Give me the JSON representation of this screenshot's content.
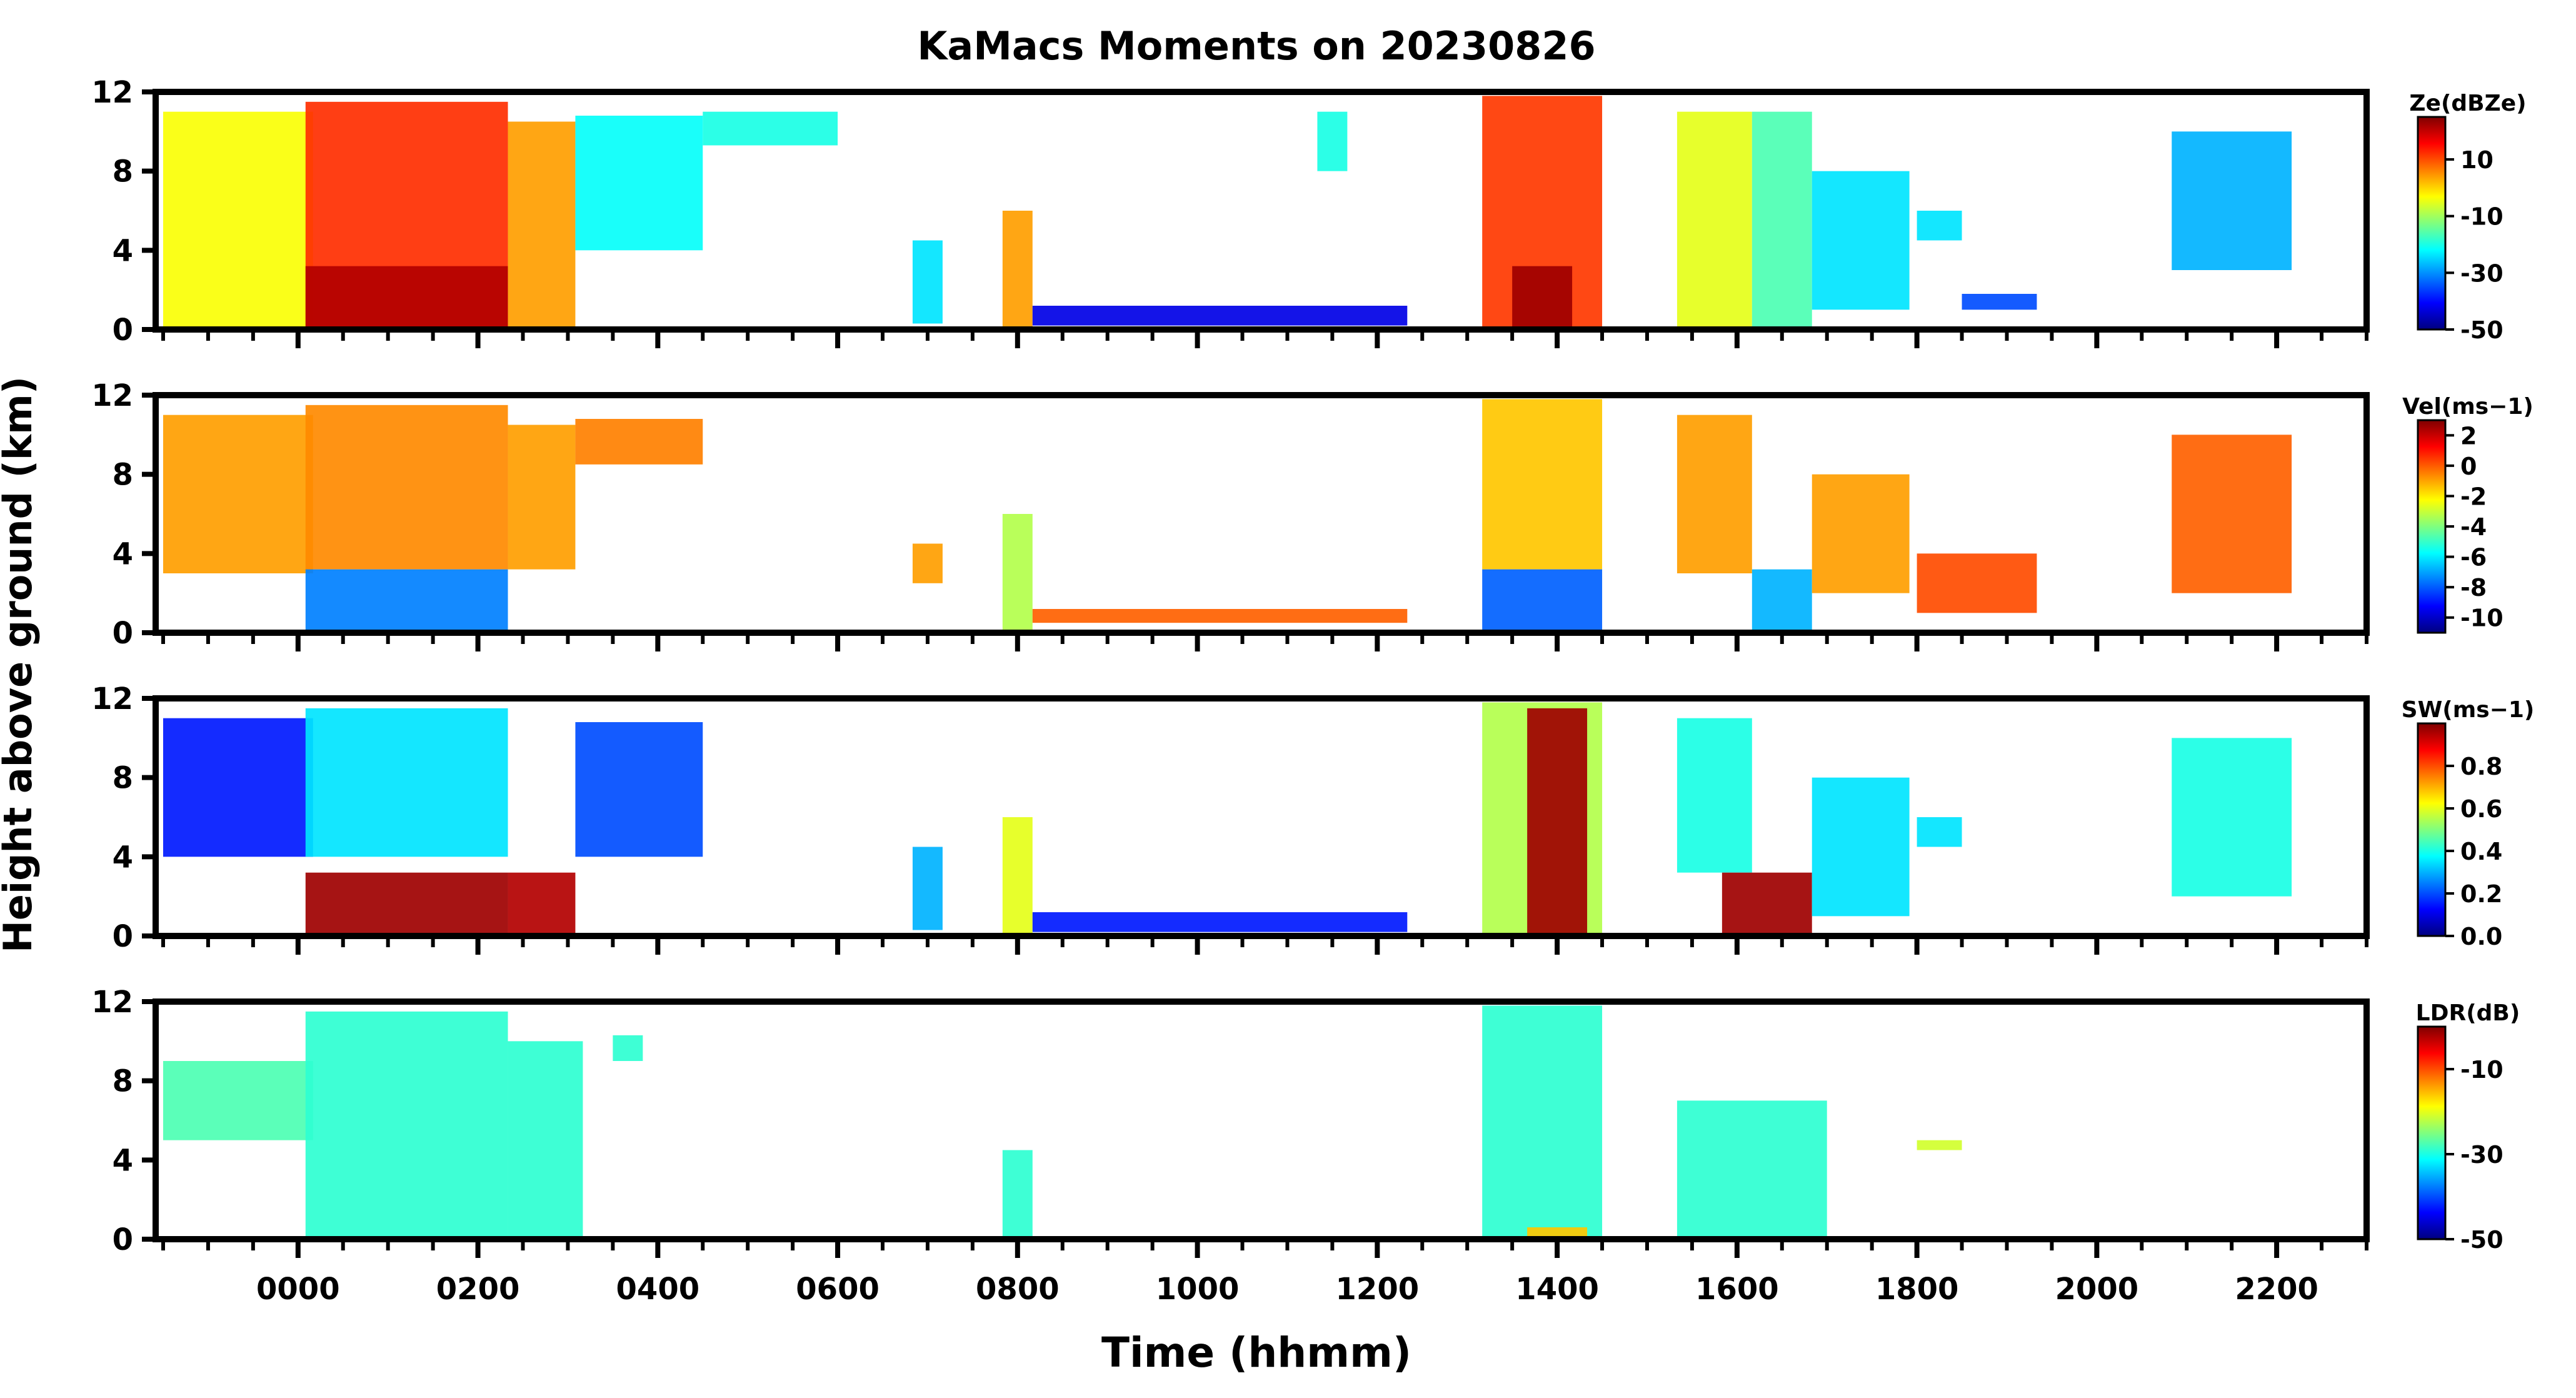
{
  "chart_data": {
    "type": "heatmap",
    "title": "KaMacs Moments on 20230826",
    "xlabel": "Time (hhmm)",
    "ylabel": "Height above ground (km)",
    "x_range_minutes": [
      -95,
      1380
    ],
    "x_ticks": [
      {
        "minutes": 0,
        "label": "0000"
      },
      {
        "minutes": 120,
        "label": "0200"
      },
      {
        "minutes": 240,
        "label": "0400"
      },
      {
        "minutes": 360,
        "label": "0600"
      },
      {
        "minutes": 480,
        "label": "0800"
      },
      {
        "minutes": 600,
        "label": "1000"
      },
      {
        "minutes": 720,
        "label": "1200"
      },
      {
        "minutes": 840,
        "label": "1400"
      },
      {
        "minutes": 960,
        "label": "1600"
      },
      {
        "minutes": 1080,
        "label": "1800"
      },
      {
        "minutes": 1200,
        "label": "2000"
      },
      {
        "minutes": 1320,
        "label": "2200"
      }
    ],
    "y_range_km": [
      0,
      12
    ],
    "y_ticks": [
      0,
      4,
      8,
      12
    ],
    "y_tick_labels": [
      "0",
      "4",
      "8",
      "12"
    ],
    "panels": [
      {
        "name": "reflectivity",
        "colorbar_label": "Ze(dBZe)",
        "range": [
          -50,
          25
        ],
        "colorbar_ticks": [
          10,
          -10,
          -30,
          -50
        ],
        "colorbar_tick_labels": [
          "10",
          "-10",
          "-30",
          "-50"
        ],
        "regions": [
          {
            "t": [
              -90,
              10
            ],
            "h": [
              0,
              11
            ],
            "v": 0.62
          },
          {
            "t": [
              5,
              140
            ],
            "h": [
              0,
              11.5
            ],
            "v": 0.83
          },
          {
            "t": [
              5,
              140
            ],
            "h": [
              0,
              3.2
            ],
            "v": 0.95
          },
          {
            "t": [
              140,
              185
            ],
            "h": [
              0,
              10.5
            ],
            "v": 0.72
          },
          {
            "t": [
              185,
              270
            ],
            "h": [
              4,
              10.8
            ],
            "v": 0.38
          },
          {
            "t": [
              270,
              360
            ],
            "h": [
              9.3,
              11
            ],
            "v": 0.4
          },
          {
            "t": [
              410,
              430
            ],
            "h": [
              0.3,
              4.5
            ],
            "v": 0.35
          },
          {
            "t": [
              470,
              490
            ],
            "h": [
              0,
              6
            ],
            "v": 0.72
          },
          {
            "t": [
              490,
              740
            ],
            "h": [
              0.2,
              1.2
            ],
            "v": 0.1
          },
          {
            "t": [
              680,
              700
            ],
            "h": [
              8,
              11
            ],
            "v": 0.4
          },
          {
            "t": [
              790,
              870
            ],
            "h": [
              0,
              11.8
            ],
            "v": 0.82
          },
          {
            "t": [
              810,
              850
            ],
            "h": [
              0,
              3.2
            ],
            "v": 0.97
          },
          {
            "t": [
              920,
              970
            ],
            "h": [
              0,
              11
            ],
            "v": 0.6
          },
          {
            "t": [
              970,
              1010
            ],
            "h": [
              0,
              11
            ],
            "v": 0.45
          },
          {
            "t": [
              1010,
              1075
            ],
            "h": [
              1,
              8
            ],
            "v": 0.35
          },
          {
            "t": [
              1080,
              1110
            ],
            "h": [
              4.5,
              6
            ],
            "v": 0.35
          },
          {
            "t": [
              1110,
              1160
            ],
            "h": [
              1,
              1.8
            ],
            "v": 0.2
          },
          {
            "t": [
              1250,
              1330
            ],
            "h": [
              3,
              10
            ],
            "v": 0.3
          }
        ]
      },
      {
        "name": "velocity",
        "colorbar_label": "Vel(ms−1)",
        "range": [
          -11,
          3
        ],
        "colorbar_ticks": [
          2,
          0,
          -2,
          -4,
          -6,
          -8,
          -10
        ],
        "colorbar_tick_labels": [
          "2",
          "0",
          "-2",
          "-4",
          "-6",
          "-8",
          "-10"
        ],
        "regions": [
          {
            "t": [
              -90,
              10
            ],
            "h": [
              3,
              11
            ],
            "v": 0.72
          },
          {
            "t": [
              5,
              140
            ],
            "h": [
              3.2,
              11.5
            ],
            "v": 0.74
          },
          {
            "t": [
              5,
              140
            ],
            "h": [
              0,
              3.2
            ],
            "v": 0.25
          },
          {
            "t": [
              140,
              185
            ],
            "h": [
              3.2,
              10.5
            ],
            "v": 0.72
          },
          {
            "t": [
              185,
              270
            ],
            "h": [
              8.5,
              10.8
            ],
            "v": 0.75
          },
          {
            "t": [
              410,
              430
            ],
            "h": [
              2.5,
              4.5
            ],
            "v": 0.72
          },
          {
            "t": [
              470,
              490
            ],
            "h": [
              0,
              6
            ],
            "v": 0.55
          },
          {
            "t": [
              490,
              740
            ],
            "h": [
              0.5,
              1.2
            ],
            "v": 0.78
          },
          {
            "t": [
              790,
              870
            ],
            "h": [
              3.2,
              11.8
            ],
            "v": 0.68
          },
          {
            "t": [
              790,
              870
            ],
            "h": [
              0,
              3.2
            ],
            "v": 0.22
          },
          {
            "t": [
              920,
              970
            ],
            "h": [
              3,
              11
            ],
            "v": 0.72
          },
          {
            "t": [
              970,
              1010
            ],
            "h": [
              0,
              3.2
            ],
            "v": 0.3
          },
          {
            "t": [
              1010,
              1075
            ],
            "h": [
              2,
              8
            ],
            "v": 0.72
          },
          {
            "t": [
              1080,
              1160
            ],
            "h": [
              1,
              4
            ],
            "v": 0.8
          },
          {
            "t": [
              1250,
              1330
            ],
            "h": [
              2,
              10
            ],
            "v": 0.78
          }
        ]
      },
      {
        "name": "spectrum_width",
        "colorbar_label": "SW(ms−1)",
        "range": [
          0,
          1
        ],
        "colorbar_ticks": [
          0.8,
          0.6,
          0.4,
          0.2,
          0.0
        ],
        "colorbar_tick_labels": [
          "0.8",
          "0.6",
          "0.4",
          "0.2",
          "0.0"
        ],
        "regions": [
          {
            "t": [
              -90,
              10
            ],
            "h": [
              4,
              11
            ],
            "v": 0.15
          },
          {
            "t": [
              5,
              140
            ],
            "h": [
              4,
              11.5
            ],
            "v": 0.35
          },
          {
            "t": [
              5,
              140
            ],
            "h": [
              0,
              3.2
            ],
            "v": 0.97
          },
          {
            "t": [
              140,
              185
            ],
            "h": [
              0,
              3.2
            ],
            "v": 0.95
          },
          {
            "t": [
              185,
              270
            ],
            "h": [
              4,
              10.8
            ],
            "v": 0.2
          },
          {
            "t": [
              410,
              430
            ],
            "h": [
              0.3,
              4.5
            ],
            "v": 0.3
          },
          {
            "t": [
              470,
              490
            ],
            "h": [
              0,
              6
            ],
            "v": 0.6
          },
          {
            "t": [
              490,
              740
            ],
            "h": [
              0.2,
              1.2
            ],
            "v": 0.15
          },
          {
            "t": [
              790,
              870
            ],
            "h": [
              0,
              11.8
            ],
            "v": 0.55
          },
          {
            "t": [
              820,
              860
            ],
            "h": [
              0,
              11.5
            ],
            "v": 0.97
          },
          {
            "t": [
              920,
              970
            ],
            "h": [
              3.2,
              11
            ],
            "v": 0.4
          },
          {
            "t": [
              950,
              1010
            ],
            "h": [
              0,
              3.2
            ],
            "v": 0.97
          },
          {
            "t": [
              1010,
              1075
            ],
            "h": [
              1,
              8
            ],
            "v": 0.35
          },
          {
            "t": [
              1080,
              1110
            ],
            "h": [
              4.5,
              6
            ],
            "v": 0.35
          },
          {
            "t": [
              1250,
              1330
            ],
            "h": [
              2,
              10
            ],
            "v": 0.4
          }
        ]
      },
      {
        "name": "ldr",
        "colorbar_label": "LDR(dB)",
        "range": [
          -50,
          0
        ],
        "colorbar_ticks": [
          -10,
          -30,
          -50
        ],
        "colorbar_tick_labels": [
          "-10",
          "-30",
          "-50"
        ],
        "regions": [
          {
            "t": [
              -90,
              10
            ],
            "h": [
              5,
              9
            ],
            "v": 0.45
          },
          {
            "t": [
              5,
              140
            ],
            "h": [
              0,
              11.5
            ],
            "v": 0.42
          },
          {
            "t": [
              140,
              190
            ],
            "h": [
              0,
              10
            ],
            "v": 0.42
          },
          {
            "t": [
              210,
              230
            ],
            "h": [
              9,
              10.3
            ],
            "v": 0.42
          },
          {
            "t": [
              470,
              490
            ],
            "h": [
              0,
              4.5
            ],
            "v": 0.42
          },
          {
            "t": [
              790,
              870
            ],
            "h": [
              0,
              11.8
            ],
            "v": 0.42
          },
          {
            "t": [
              820,
              860
            ],
            "h": [
              0,
              0.6
            ],
            "v": 0.68
          },
          {
            "t": [
              920,
              1020
            ],
            "h": [
              0,
              7
            ],
            "v": 0.42
          },
          {
            "t": [
              1080,
              1110
            ],
            "h": [
              4.5,
              5
            ],
            "v": 0.58
          }
        ]
      }
    ]
  }
}
